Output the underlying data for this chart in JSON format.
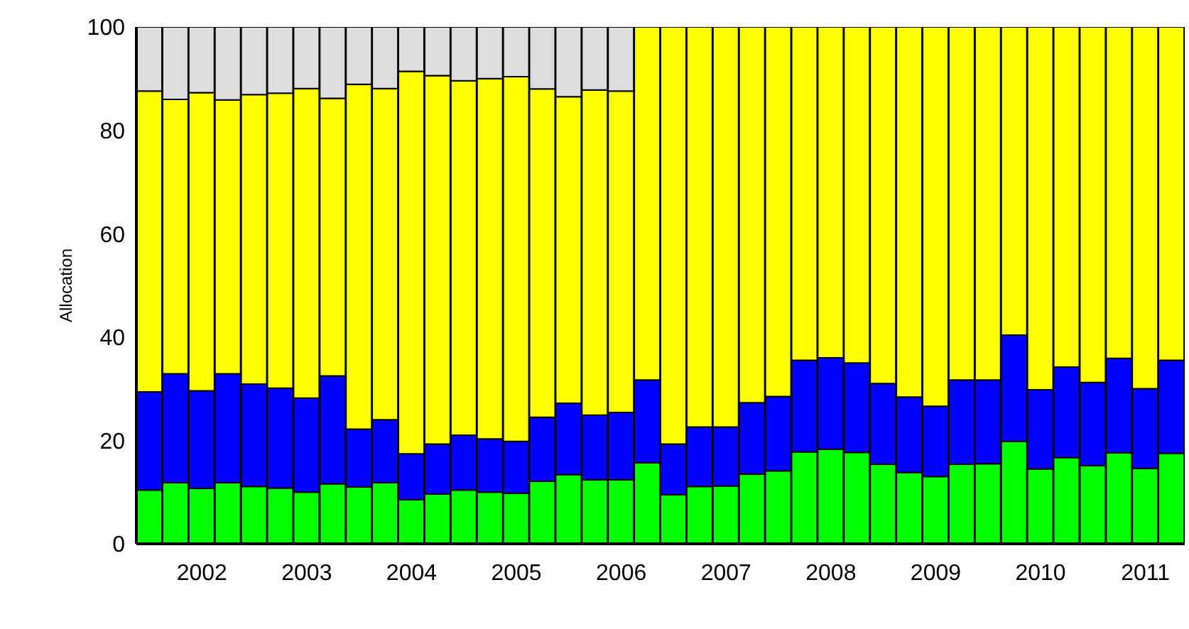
{
  "chart_data": {
    "type": "bar",
    "stacked": true,
    "ylabel": "Allocation",
    "ylim": [
      0,
      100
    ],
    "yticks": [
      0,
      20,
      40,
      60,
      80,
      100
    ],
    "grid": false,
    "legend": false,
    "categories": [
      null,
      null,
      "2002",
      null,
      null,
      null,
      "2003",
      null,
      null,
      null,
      "2004",
      null,
      null,
      null,
      "2005",
      null,
      null,
      null,
      "2006",
      null,
      null,
      null,
      "2007",
      null,
      null,
      null,
      "2008",
      null,
      null,
      null,
      "2009",
      null,
      null,
      null,
      "2010",
      null,
      null,
      null,
      "2011",
      null
    ],
    "series": [
      {
        "color": "#00ff00",
        "values": [
          10.4,
          11.8,
          10.7,
          11.8,
          11.1,
          10.8,
          10.0,
          11.6,
          11.0,
          11.8,
          8.5,
          9.6,
          10.4,
          10.0,
          9.8,
          12.1,
          13.4,
          12.4,
          12.4,
          15.7,
          9.5,
          11.1,
          11.2,
          13.5,
          14.1,
          17.8,
          18.3,
          17.7,
          15.4,
          13.8,
          13.0,
          15.4,
          15.5,
          19.8,
          14.5,
          16.7,
          15.1,
          17.6,
          14.6,
          17.5
        ]
      },
      {
        "color": "#0000ff",
        "values": [
          19.0,
          21.1,
          18.9,
          21.1,
          19.8,
          19.3,
          18.2,
          20.9,
          11.2,
          12.2,
          8.9,
          9.7,
          10.6,
          10.3,
          10.0,
          12.4,
          13.8,
          12.5,
          13.0,
          16.0,
          9.8,
          11.5,
          11.4,
          13.8,
          14.4,
          17.7,
          17.7,
          17.3,
          15.6,
          14.6,
          13.6,
          16.3,
          16.2,
          20.6,
          15.3,
          17.5,
          16.1,
          18.3,
          15.4,
          18.0
        ]
      },
      {
        "color": "#ffff00",
        "values": [
          58.2,
          53.1,
          57.7,
          53.0,
          56.0,
          57.1,
          59.9,
          53.7,
          66.7,
          64.1,
          74.0,
          71.3,
          68.6,
          69.7,
          70.6,
          63.5,
          59.3,
          62.9,
          62.2,
          68.3,
          80.7,
          77.4,
          77.4,
          72.7,
          71.5,
          64.5,
          64.0,
          65.0,
          69.0,
          71.6,
          73.4,
          68.3,
          68.3,
          59.6,
          70.2,
          65.8,
          68.8,
          64.1,
          70.0,
          64.5
        ]
      },
      {
        "color": "#dddddd",
        "values": [
          12.4,
          14.0,
          12.7,
          14.1,
          13.1,
          12.8,
          11.9,
          13.8,
          11.1,
          11.9,
          8.6,
          9.4,
          10.4,
          10.0,
          9.6,
          12.0,
          13.5,
          12.2,
          12.4,
          null,
          null,
          null,
          null,
          null,
          null,
          null,
          null,
          null,
          null,
          null,
          null,
          null,
          null,
          null,
          null,
          null,
          null,
          null,
          null,
          null
        ]
      }
    ]
  }
}
